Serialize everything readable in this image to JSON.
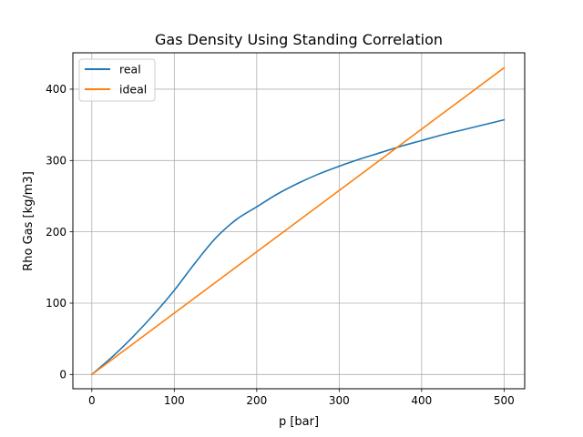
{
  "chart_data": {
    "type": "line",
    "title": "Gas Density Using Standing Correlation",
    "xlabel": "p [bar]",
    "ylabel": "Rho Gas [kg/m3]",
    "xlim": [
      -23,
      525
    ],
    "ylim": [
      -20,
      451
    ],
    "xticks": [
      0,
      100,
      200,
      300,
      400,
      500
    ],
    "yticks": [
      0,
      100,
      200,
      300,
      400
    ],
    "grid": true,
    "legend": "top-left",
    "series": [
      {
        "name": "real",
        "color": "#1f77b4",
        "x": [
          0,
          25,
          50,
          75,
          100,
          125,
          150,
          175,
          200,
          225,
          250,
          275,
          300,
          325,
          350,
          375,
          400,
          425,
          450,
          475,
          500
        ],
        "y": [
          0,
          25,
          53,
          84,
          118,
          156,
          191,
          217,
          235,
          253,
          268,
          281,
          292,
          302,
          311,
          320,
          328,
          336,
          343,
          350,
          357
        ]
      },
      {
        "name": "ideal",
        "color": "#ff7f0e",
        "x": [
          0,
          500
        ],
        "y": [
          0,
          430
        ]
      }
    ]
  }
}
